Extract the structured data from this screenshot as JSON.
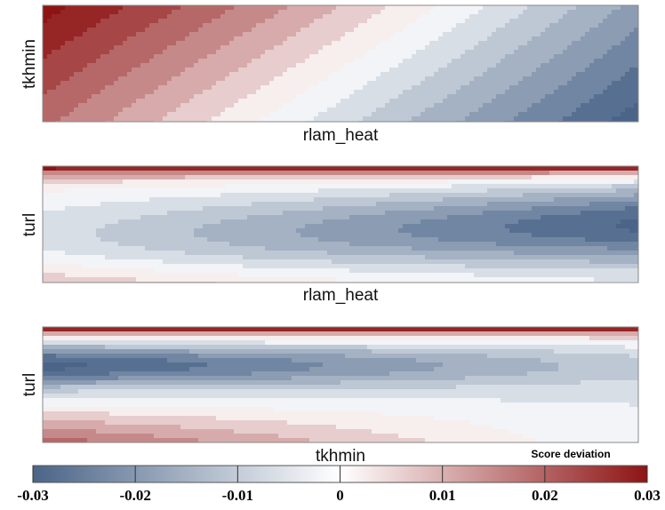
{
  "chart_data": [
    {
      "type": "contour",
      "x_label": "rlam_heat",
      "y_label": "tkhmin"
    },
    {
      "type": "contour",
      "x_label": "rlam_heat",
      "y_label": "turl"
    },
    {
      "type": "contour",
      "x_label": "tkhmin",
      "y_label": "turl"
    },
    {
      "type": "colorbar",
      "title": "Score deviation",
      "xlim": [
        -0.03,
        0.03
      ],
      "xticks": [
        -0.03,
        -0.02,
        -0.01,
        0,
        0.01,
        0.02,
        0.03
      ],
      "colormap": [
        "#4a6588",
        "#ffffff",
        "#8e1414"
      ]
    }
  ]
}
